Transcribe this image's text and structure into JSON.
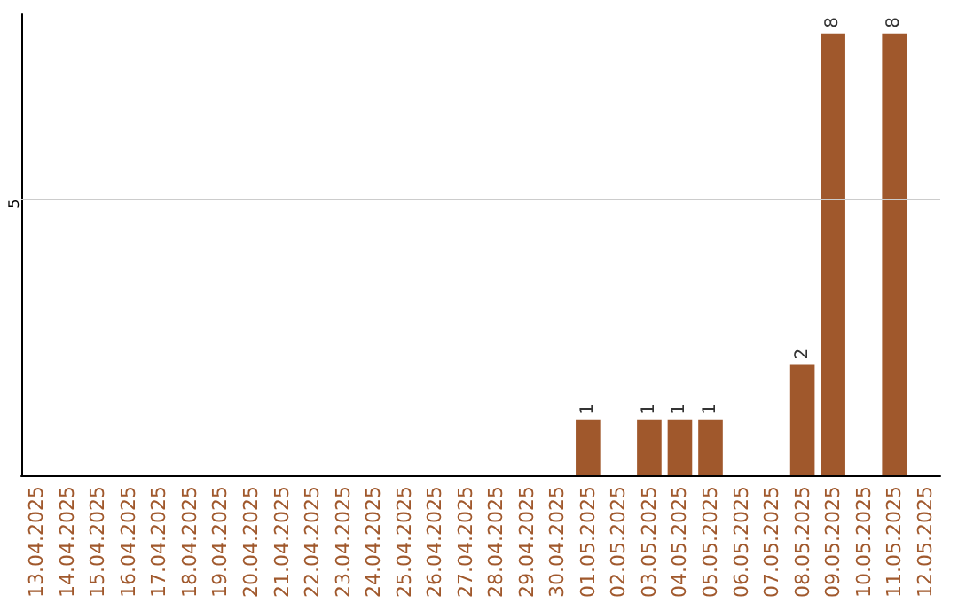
{
  "chart_data": {
    "type": "bar",
    "categories": [
      "13.04.2025",
      "14.04.2025",
      "15.04.2025",
      "16.04.2025",
      "17.04.2025",
      "18.04.2025",
      "19.04.2025",
      "20.04.2025",
      "21.04.2025",
      "22.04.2025",
      "23.04.2025",
      "24.04.2025",
      "25.04.2025",
      "26.04.2025",
      "27.04.2025",
      "28.04.2025",
      "29.04.2025",
      "30.04.2025",
      "01.05.2025",
      "02.05.2025",
      "03.05.2025",
      "04.05.2025",
      "05.05.2025",
      "06.05.2025",
      "07.05.2025",
      "08.05.2025",
      "09.05.2025",
      "10.05.2025",
      "11.05.2025",
      "12.05.2025"
    ],
    "values": [
      null,
      null,
      null,
      null,
      null,
      null,
      null,
      null,
      null,
      null,
      null,
      null,
      null,
      null,
      null,
      null,
      null,
      null,
      1,
      null,
      1,
      1,
      1,
      null,
      null,
      2,
      8,
      null,
      8,
      null
    ],
    "value_labels": [
      null,
      null,
      null,
      null,
      null,
      null,
      null,
      null,
      null,
      null,
      null,
      null,
      null,
      null,
      null,
      null,
      null,
      null,
      "1",
      null,
      "1",
      "1",
      "1",
      null,
      null,
      "2",
      "8",
      null,
      "8",
      null
    ],
    "color": "#a0582c",
    "ylim": [
      0,
      8.35
    ],
    "ref_lines": [
      {
        "axis": "y",
        "value": 5,
        "label": "5",
        "color": "#cccccc"
      }
    ]
  }
}
